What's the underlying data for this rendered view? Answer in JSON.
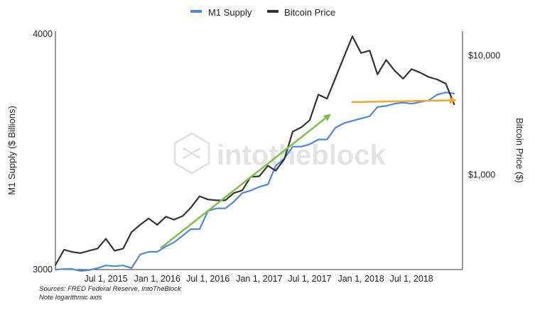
{
  "chart_data": {
    "type": "line",
    "legend": {
      "placement": "top-center",
      "entries": [
        {
          "name": "M1 Supply",
          "color": "#4a86e8"
        },
        {
          "name": "Bitcoin Price",
          "color": "#333333"
        }
      ]
    },
    "x_ticks": [
      "Jul 1, 2015",
      "Jan 1, 2016",
      "Jul 1, 2016",
      "Jan 1, 2017",
      "Jul 1, 2017",
      "Jan 1, 2018",
      "Jul 1, 2018"
    ],
    "xlim": [
      "2015-01-01",
      "2018-12-31"
    ],
    "y_left": {
      "label": "M1 Supply ($ Billions)",
      "ticks": [
        "3000",
        "4000"
      ],
      "lim": [
        3000,
        4000
      ],
      "scale": "log"
    },
    "y_right": {
      "label": "Bitcoin Price ($)",
      "ticks": [
        "$10,000",
        "$1,000"
      ],
      "tick_values": [
        10000,
        1000
      ],
      "lim": [
        160,
        16000
      ],
      "scale": "log"
    },
    "grid": false,
    "series": [
      {
        "name": "M1 Supply",
        "color": "#4a86e8",
        "axis": "left",
        "x": [
          "2015-01-01",
          "2015-02-01",
          "2015-03-01",
          "2015-04-01",
          "2015-05-01",
          "2015-06-01",
          "2015-07-01",
          "2015-08-01",
          "2015-09-01",
          "2015-10-01",
          "2015-11-01",
          "2015-12-01",
          "2016-01-01",
          "2016-02-01",
          "2016-03-01",
          "2016-04-01",
          "2016-05-01",
          "2016-06-01",
          "2016-07-01",
          "2016-08-01",
          "2016-09-01",
          "2016-10-01",
          "2016-11-01",
          "2016-12-01",
          "2017-01-01",
          "2017-02-01",
          "2017-03-01",
          "2017-04-01",
          "2017-05-01",
          "2017-06-01",
          "2017-07-01",
          "2017-08-01",
          "2017-09-01",
          "2017-10-01",
          "2017-11-01",
          "2017-12-01",
          "2018-01-01",
          "2018-02-01",
          "2018-03-01",
          "2018-04-01",
          "2018-05-01",
          "2018-06-01",
          "2018-07-01",
          "2018-08-01",
          "2018-09-01",
          "2018-10-01",
          "2018-11-01",
          "2018-12-01"
        ],
        "values": [
          3000,
          3002,
          3002,
          2995,
          2998,
          3005,
          3015,
          3012,
          3015,
          3005,
          3055,
          3065,
          3065,
          3085,
          3100,
          3125,
          3150,
          3150,
          3220,
          3230,
          3230,
          3255,
          3290,
          3300,
          3315,
          3325,
          3400,
          3430,
          3480,
          3480,
          3490,
          3510,
          3510,
          3560,
          3580,
          3590,
          3600,
          3610,
          3650,
          3655,
          3665,
          3670,
          3665,
          3672,
          3680,
          3705,
          3715,
          3710
        ]
      },
      {
        "name": "Bitcoin Price",
        "color": "#333333",
        "axis": "right",
        "x": [
          "2015-01-01",
          "2015-02-01",
          "2015-03-01",
          "2015-04-01",
          "2015-05-01",
          "2015-06-01",
          "2015-07-01",
          "2015-08-01",
          "2015-09-01",
          "2015-10-01",
          "2015-11-01",
          "2015-12-01",
          "2016-01-01",
          "2016-02-01",
          "2016-03-01",
          "2016-04-01",
          "2016-05-01",
          "2016-06-01",
          "2016-07-01",
          "2016-08-01",
          "2016-09-01",
          "2016-10-01",
          "2016-11-01",
          "2016-12-01",
          "2017-01-01",
          "2017-02-01",
          "2017-03-01",
          "2017-04-01",
          "2017-05-01",
          "2017-06-01",
          "2017-07-01",
          "2017-08-01",
          "2017-09-01",
          "2017-10-01",
          "2017-11-01",
          "2017-12-01",
          "2018-01-01",
          "2018-02-01",
          "2018-03-01",
          "2018-04-01",
          "2018-05-01",
          "2018-06-01",
          "2018-07-01",
          "2018-08-01",
          "2018-09-01",
          "2018-10-01",
          "2018-11-01",
          "2018-12-01"
        ],
        "values": [
          175,
          235,
          225,
          220,
          230,
          240,
          290,
          230,
          240,
          330,
          380,
          430,
          380,
          445,
          420,
          450,
          530,
          660,
          620,
          610,
          610,
          700,
          740,
          960,
          970,
          1190,
          1080,
          1350,
          2300,
          2500,
          2870,
          4700,
          4350,
          6450,
          9800,
          14500,
          10500,
          11000,
          6930,
          9200,
          7500,
          6400,
          7700,
          7200,
          6600,
          6300,
          5800,
          3900
        ]
      }
    ],
    "annotations": [
      {
        "type": "arrow",
        "color": "#7cc142",
        "from": {
          "x": "2016-01-15",
          "m1": 3080
        },
        "to": {
          "x": "2017-09-15",
          "m1": 3620
        }
      },
      {
        "type": "arrow",
        "color": "#f5a623",
        "from": {
          "x": "2017-12-01",
          "m1": 3672
        },
        "to": {
          "x": "2018-12-10",
          "m1": 3680
        }
      }
    ]
  },
  "watermark": "intotheblock",
  "footer": {
    "sources": "Sources: FRED Federal Reserve, IntoTheBlock",
    "note": "Note logarithmic axis"
  }
}
